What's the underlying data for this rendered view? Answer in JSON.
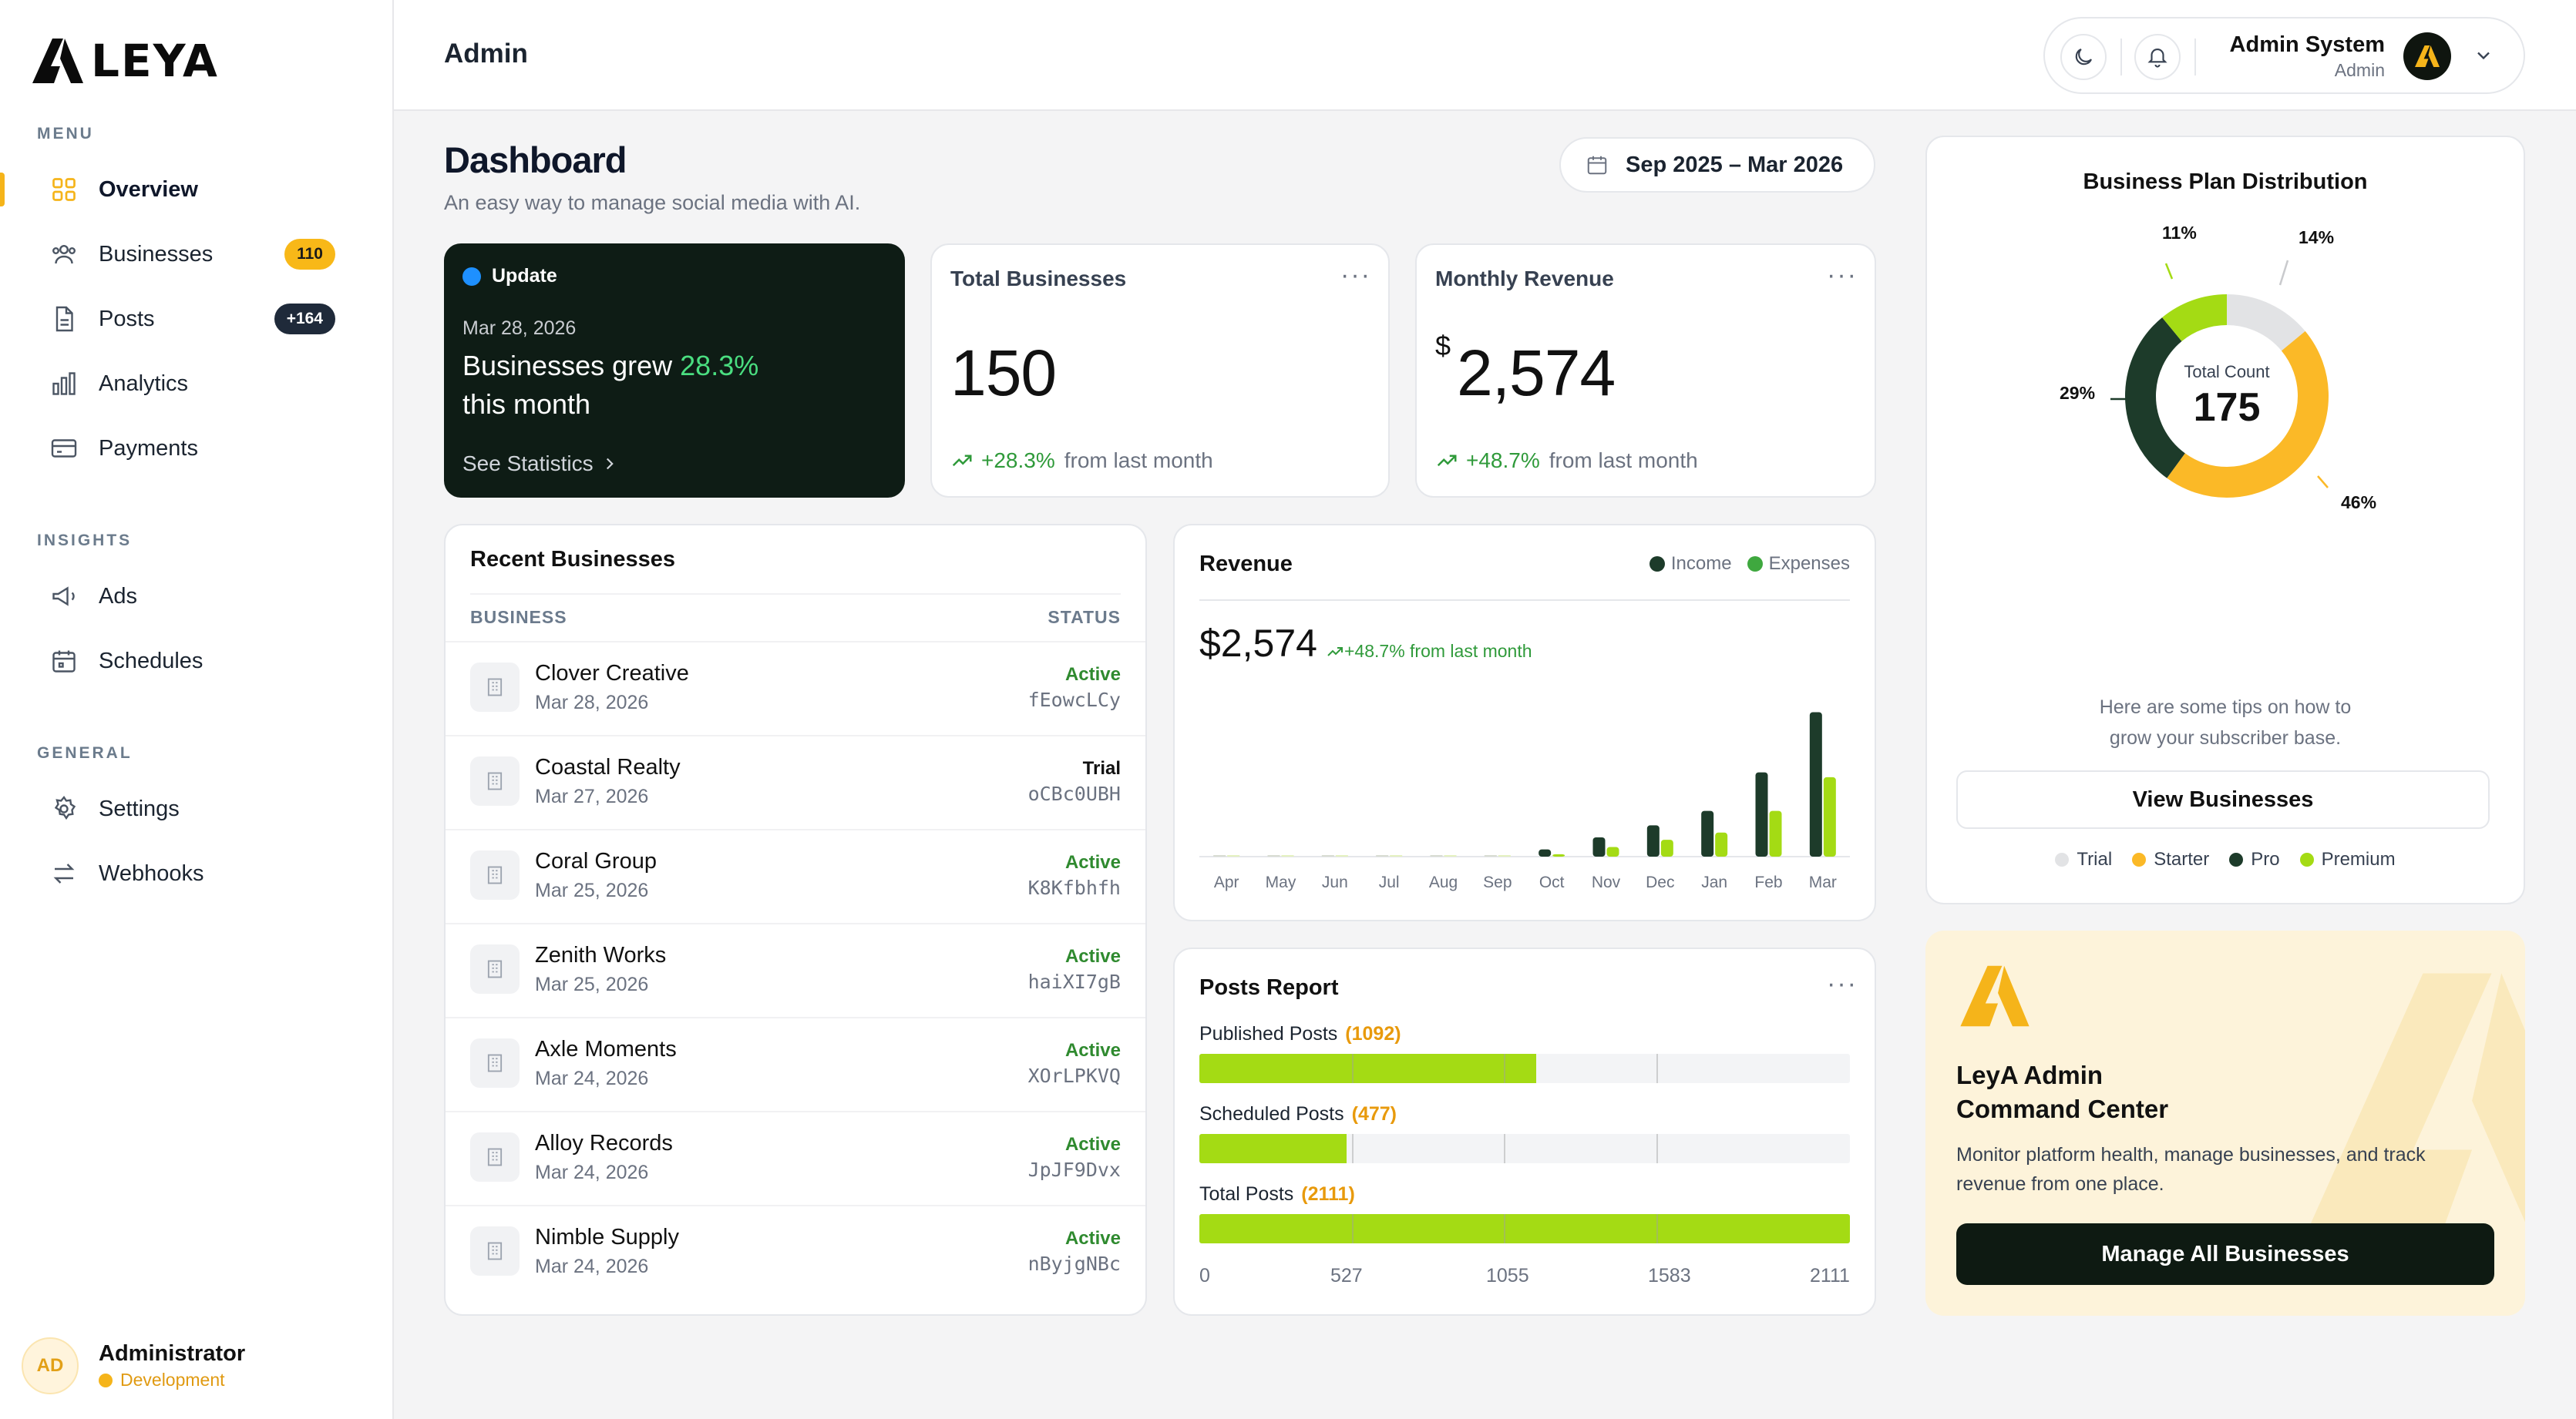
{
  "brand": {
    "name": "LEYA",
    "accent": "#f5b41a",
    "dark": "#0e1c15",
    "green": "#a4db14"
  },
  "sidebar": {
    "sections": [
      {
        "label": "MENU",
        "items": [
          {
            "label": "Overview",
            "icon": "grid-icon",
            "active": true
          },
          {
            "label": "Businesses",
            "icon": "users-icon",
            "badge": "110"
          },
          {
            "label": "Posts",
            "icon": "file-icon",
            "badge": "+164"
          },
          {
            "label": "Analytics",
            "icon": "bar-chart-icon"
          },
          {
            "label": "Payments",
            "icon": "credit-card-icon"
          }
        ]
      },
      {
        "label": "INSIGHTS",
        "items": [
          {
            "label": "Ads",
            "icon": "megaphone-icon"
          },
          {
            "label": "Schedules",
            "icon": "calendar-icon"
          }
        ]
      },
      {
        "label": "GENERAL",
        "items": [
          {
            "label": "Settings",
            "icon": "gear-icon"
          },
          {
            "label": "Webhooks",
            "icon": "arrows-icon"
          }
        ]
      }
    ],
    "user": {
      "initials": "AD",
      "name": "Administrator",
      "env": "Development"
    }
  },
  "header": {
    "title": "Admin",
    "user_name": "Admin System",
    "user_role": "Admin"
  },
  "page": {
    "title": "Dashboard",
    "subtitle": "An easy way to manage social media with AI.",
    "date_range": "Sep 2025 – Mar 2026"
  },
  "update_card": {
    "tag": "Update",
    "date": "Mar 28, 2026",
    "headline_prefix": "Businesses grew",
    "headline_pct": "28.3%",
    "headline_suffix": "this month",
    "link": "See Statistics"
  },
  "stats": [
    {
      "title": "Total Businesses",
      "value": "150",
      "currency": "",
      "change": "+28.3%",
      "change_text": "from last month"
    },
    {
      "title": "Monthly Revenue",
      "value": "2,574",
      "currency": "$",
      "change": "+48.7%",
      "change_text": "from last month"
    }
  ],
  "recent_businesses": {
    "title": "Recent Businesses",
    "col_business": "BUSINESS",
    "col_status": "STATUS",
    "rows": [
      {
        "name": "Clover Creative",
        "date": "Mar 28, 2026",
        "status": "Active",
        "code": "fEowcLCy"
      },
      {
        "name": "Coastal Realty",
        "date": "Mar 27, 2026",
        "status": "Trial",
        "code": "oCBc0UBH"
      },
      {
        "name": "Coral Group",
        "date": "Mar 25, 2026",
        "status": "Active",
        "code": "K8Kfbhfh"
      },
      {
        "name": "Zenith Works",
        "date": "Mar 25, 2026",
        "status": "Active",
        "code": "haiXI7gB"
      },
      {
        "name": "Axle Moments",
        "date": "Mar 24, 2026",
        "status": "Active",
        "code": "XOrLPKVQ"
      },
      {
        "name": "Alloy Records",
        "date": "Mar 24, 2026",
        "status": "Active",
        "code": "JpJF9Dvx"
      },
      {
        "name": "Nimble Supply",
        "date": "Mar 24, 2026",
        "status": "Active",
        "code": "nByjgNBc"
      }
    ]
  },
  "revenue": {
    "title": "Revenue",
    "value": "$2,574",
    "change": "+48.7% from last month",
    "legend_income": "Income",
    "legend_expenses": "Expenses"
  },
  "posts_report": {
    "title": "Posts Report",
    "bars": [
      {
        "label": "Published Posts",
        "count": "(1092)",
        "value": 1092
      },
      {
        "label": "Scheduled Posts",
        "count": "(477)",
        "value": 477
      },
      {
        "label": "Total Posts",
        "count": "(2111)",
        "value": 2111
      }
    ],
    "max": 2111,
    "ticks": [
      "0",
      "527",
      "1055",
      "1583",
      "2111"
    ]
  },
  "plan_distribution": {
    "title": "Business Plan Distribution",
    "center_label": "Total Count",
    "center_value": "175",
    "tips": [
      "Here are some tips on how to",
      "grow your subscriber base."
    ],
    "button": "View Businesses",
    "slice_labels": [
      "14%",
      "46%",
      "29%",
      "11%"
    ]
  },
  "promo": {
    "title_line1": "LeyA Admin",
    "title_line2": "Command Center",
    "desc": "Monitor platform health, manage businesses, and track revenue from one place.",
    "button": "Manage All Businesses"
  },
  "chart_data": [
    {
      "type": "bar",
      "title": "Revenue",
      "categories": [
        "Apr",
        "May",
        "Jun",
        "Jul",
        "Aug",
        "Sep",
        "Oct",
        "Nov",
        "Dec",
        "Jan",
        "Feb",
        "Mar"
      ],
      "series": [
        {
          "name": "Income",
          "color": "#1d3b2a",
          "values": [
            0,
            0,
            0,
            0,
            0,
            0,
            3,
            8,
            13,
            19,
            35,
            60
          ]
        },
        {
          "name": "Expenses",
          "color": "#a4db14",
          "values": [
            0,
            0,
            0,
            0,
            0,
            0,
            1,
            4,
            7,
            10,
            19,
            33
          ]
        }
      ],
      "ylim": [
        0,
        64
      ],
      "grid": false,
      "legend": "top-right"
    },
    {
      "type": "pie",
      "title": "Business Plan Distribution",
      "categories": [
        "Trial",
        "Starter",
        "Pro",
        "Premium"
      ],
      "values": [
        14,
        46,
        29,
        11
      ],
      "colors": [
        "#e2e3e5",
        "#fbb927",
        "#1d3b2a",
        "#a4db14"
      ],
      "legend": "bottom"
    }
  ]
}
